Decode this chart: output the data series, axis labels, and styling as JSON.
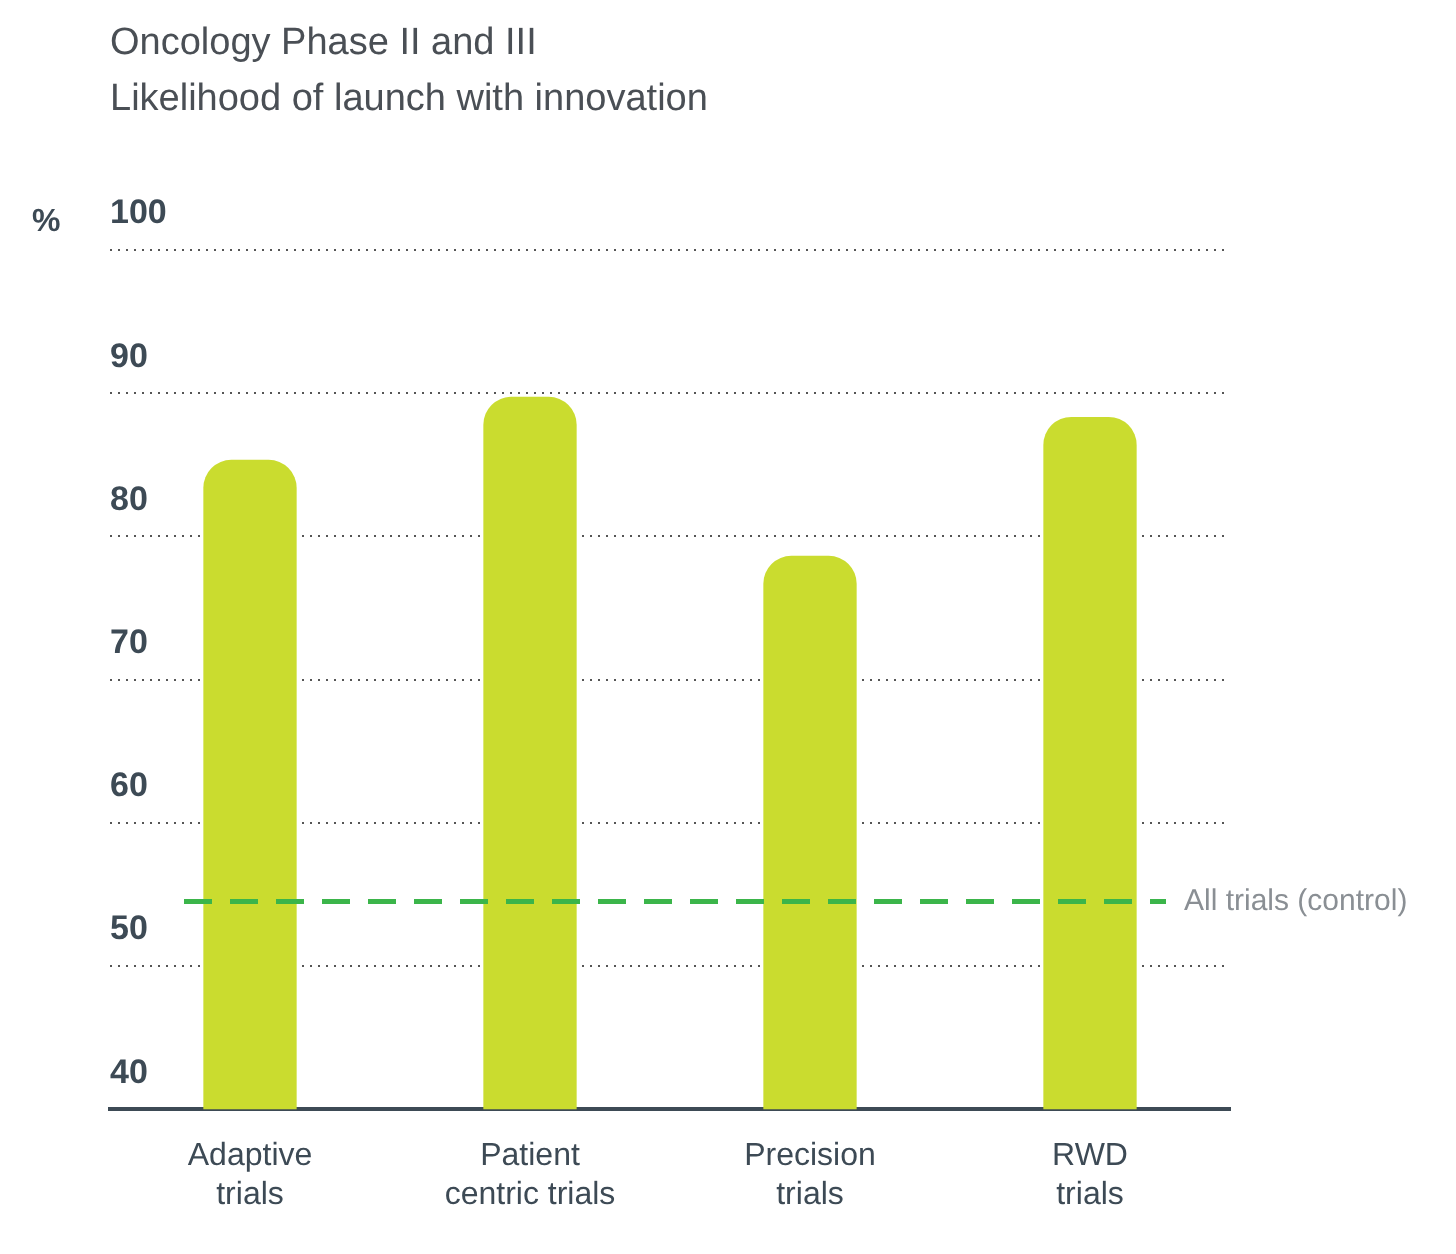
{
  "chart_data": {
    "type": "bar",
    "title": "Oncology Phase II and III",
    "subtitle": "Likelihood of launch with innovation",
    "ylabel": "%",
    "categories": [
      "Adaptive\ntrials",
      "Patient\ncentric trials",
      "Precision\ntrials",
      "RWD\ntrials"
    ],
    "values": [
      85.3,
      89.7,
      78.6,
      88.3
    ],
    "color": "#cadc2f",
    "ylim": [
      40,
      100
    ],
    "yticks": [
      40,
      50,
      60,
      70,
      80,
      90,
      100
    ],
    "grid": "y",
    "legend": false,
    "ref_lines": [
      {
        "axis": "y",
        "value": 54.5,
        "label": "All trials (control)",
        "color": "#3bb54a",
        "line_style": "dashed"
      }
    ]
  }
}
